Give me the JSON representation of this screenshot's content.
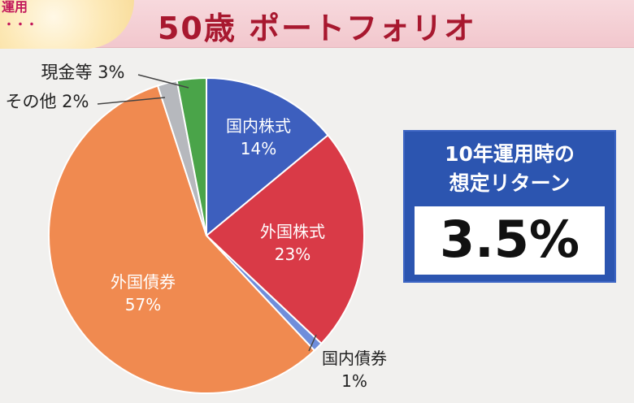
{
  "header": {
    "badge_text": "運用",
    "badge_dots": "・・・",
    "title": "50歳 ポートフォリオ"
  },
  "return_box": {
    "title_line1": "10年運用時の",
    "title_line2": "想定リターン",
    "value": "3.5%"
  },
  "chart_data": {
    "type": "pie",
    "title": "",
    "slices": [
      {
        "name": "国内株式",
        "value_label": "14%",
        "value": 14,
        "color": "#3d5fbe",
        "label_color": "#ffffff",
        "label_mode": "inside"
      },
      {
        "name": "外国株式",
        "value_label": "23%",
        "value": 23,
        "color": "#d93a47",
        "label_color": "#ffffff",
        "label_mode": "inside"
      },
      {
        "name": "国内債券",
        "value_label": "1%",
        "value": 1,
        "color": "#6f8edb",
        "label_color": "#222222",
        "label_mode": "outside"
      },
      {
        "name": "外国債券",
        "value_label": "57%",
        "value": 57,
        "color": "#f08a50",
        "label_color": "#ffffff",
        "label_mode": "inside"
      },
      {
        "name": "その他",
        "value_label": "2%",
        "value": 2,
        "color": "#b6b8bd",
        "label_color": "#222222",
        "label_mode": "callout"
      },
      {
        "name": "現金等",
        "value_label": "3%",
        "value": 3,
        "color": "#4aa449",
        "label_color": "#222222",
        "label_mode": "callout"
      }
    ]
  }
}
